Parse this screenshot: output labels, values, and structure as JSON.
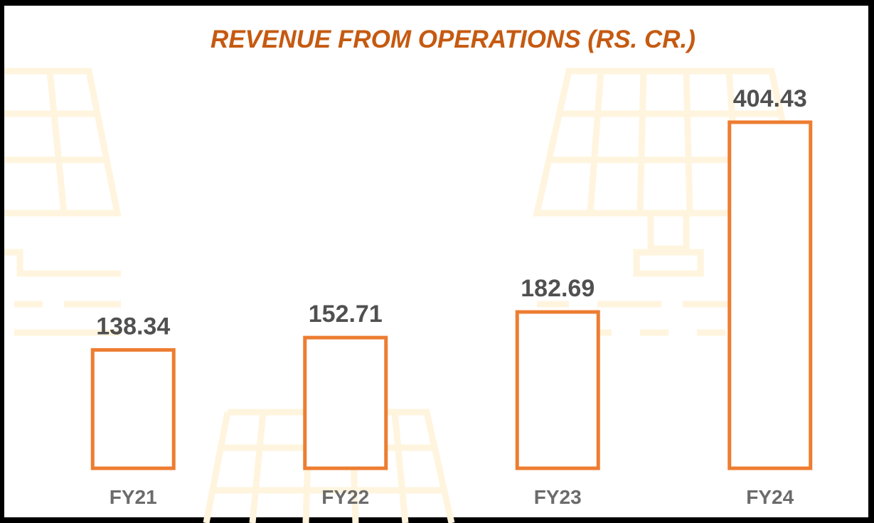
{
  "chart_data": {
    "type": "bar",
    "title": "REVENUE FROM OPERATIONS (RS. CR.)",
    "categories": [
      "FY21",
      "FY22",
      "FY23",
      "FY24"
    ],
    "values": [
      138.34,
      152.71,
      182.69,
      404.43
    ],
    "color": "#ed7d31"
  }
}
